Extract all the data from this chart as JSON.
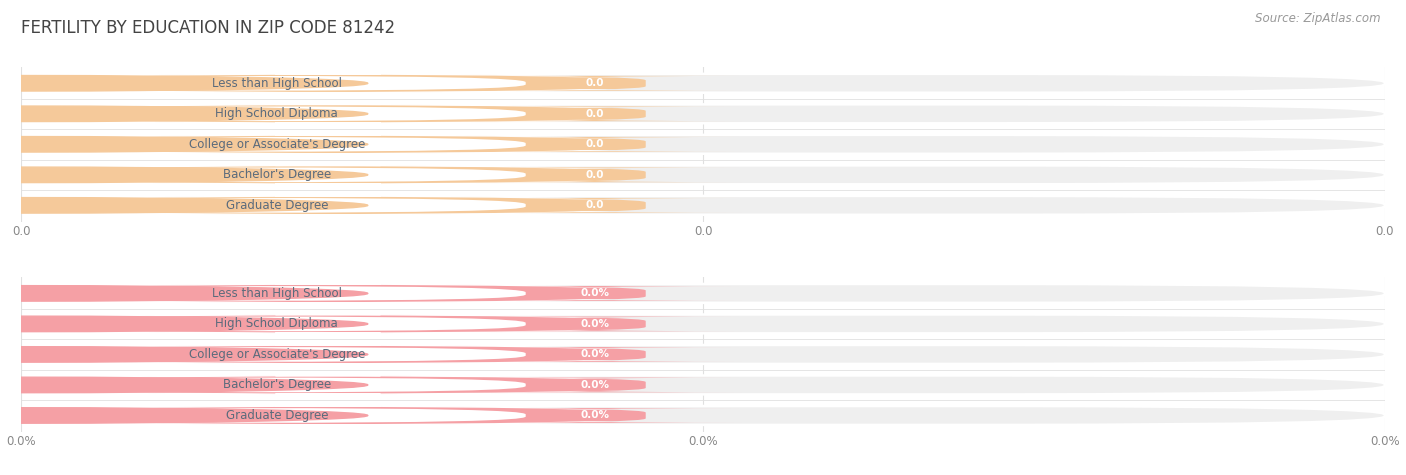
{
  "title": "FERTILITY BY EDUCATION IN ZIP CODE 81242",
  "source": "Source: ZipAtlas.com",
  "categories": [
    "Less than High School",
    "High School Diploma",
    "College or Associate's Degree",
    "Bachelor's Degree",
    "Graduate Degree"
  ],
  "top_values": [
    0.0,
    0.0,
    0.0,
    0.0,
    0.0
  ],
  "bottom_values": [
    0.0,
    0.0,
    0.0,
    0.0,
    0.0
  ],
  "top_bar_color": "#F5C99A",
  "top_bar_bg": "#EFEFEF",
  "top_label_bg": "#FFFFFF",
  "top_text_color": "#5B6B7C",
  "bottom_bar_color": "#F5A0A5",
  "bottom_bar_bg": "#EFEFEF",
  "bottom_label_bg": "#FFFFFF",
  "bottom_text_color": "#5B6B7C",
  "value_text_color": "#FFFFFF",
  "bg_color": "#FFFFFF",
  "title_color": "#444444",
  "title_fontsize": 12,
  "label_fontsize": 8.5,
  "value_fontsize": 7.5,
  "tick_fontsize": 8.5,
  "source_fontsize": 8.5,
  "xtick_labels_top": [
    "0.0",
    "0.0",
    "0.0"
  ],
  "xtick_labels_bottom": [
    "0.0%",
    "0.0%",
    "0.0%"
  ],
  "grid_color": "#E0E0E0",
  "sep_line_color": "#CCCCCC"
}
